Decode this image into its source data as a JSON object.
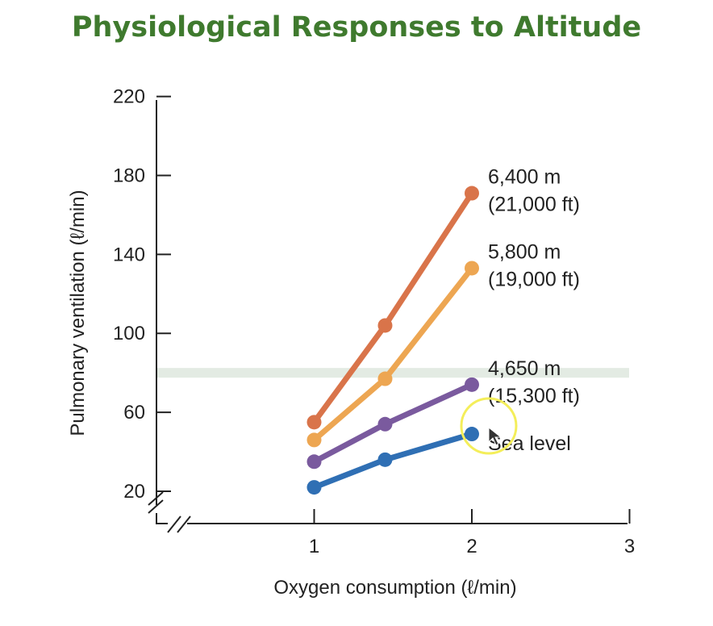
{
  "title": "Physiological Responses to Altitude",
  "colors": {
    "title": "#3f7a2e",
    "highlight_band": "#e3ebe3",
    "cursor_ring": "#f4ee5a"
  },
  "chart_data": {
    "type": "line",
    "title": "",
    "xlabel": "Oxygen consumption (ℓ/min)",
    "ylabel": "Pulmonary ventilation (ℓ/min)",
    "xlim": [
      0,
      3
    ],
    "ylim": [
      20,
      220
    ],
    "xticks": [
      "1",
      "2",
      "3"
    ],
    "yticks": [
      "20",
      "60",
      "100",
      "140",
      "180",
      "220"
    ],
    "x": [
      1,
      1.45,
      2
    ],
    "axis_break": true,
    "reference_band_y": 80,
    "series": [
      {
        "label_line1": "6,400 m",
        "label_line2": "(21,000 ft)",
        "color": "#d9744a",
        "values": [
          55,
          104,
          171
        ]
      },
      {
        "label_line1": "5,800 m",
        "label_line2": "(19,000 ft)",
        "color": "#eda652",
        "values": [
          46,
          77,
          133
        ]
      },
      {
        "label_line1": "4,650 m",
        "label_line2": "(15,300 ft)",
        "color": "#7a5a9e",
        "values": [
          35,
          54,
          74
        ]
      },
      {
        "label_line1": "Sea level",
        "label_line2": "",
        "color": "#2f6fb4",
        "values": [
          22,
          36,
          49
        ]
      }
    ]
  }
}
